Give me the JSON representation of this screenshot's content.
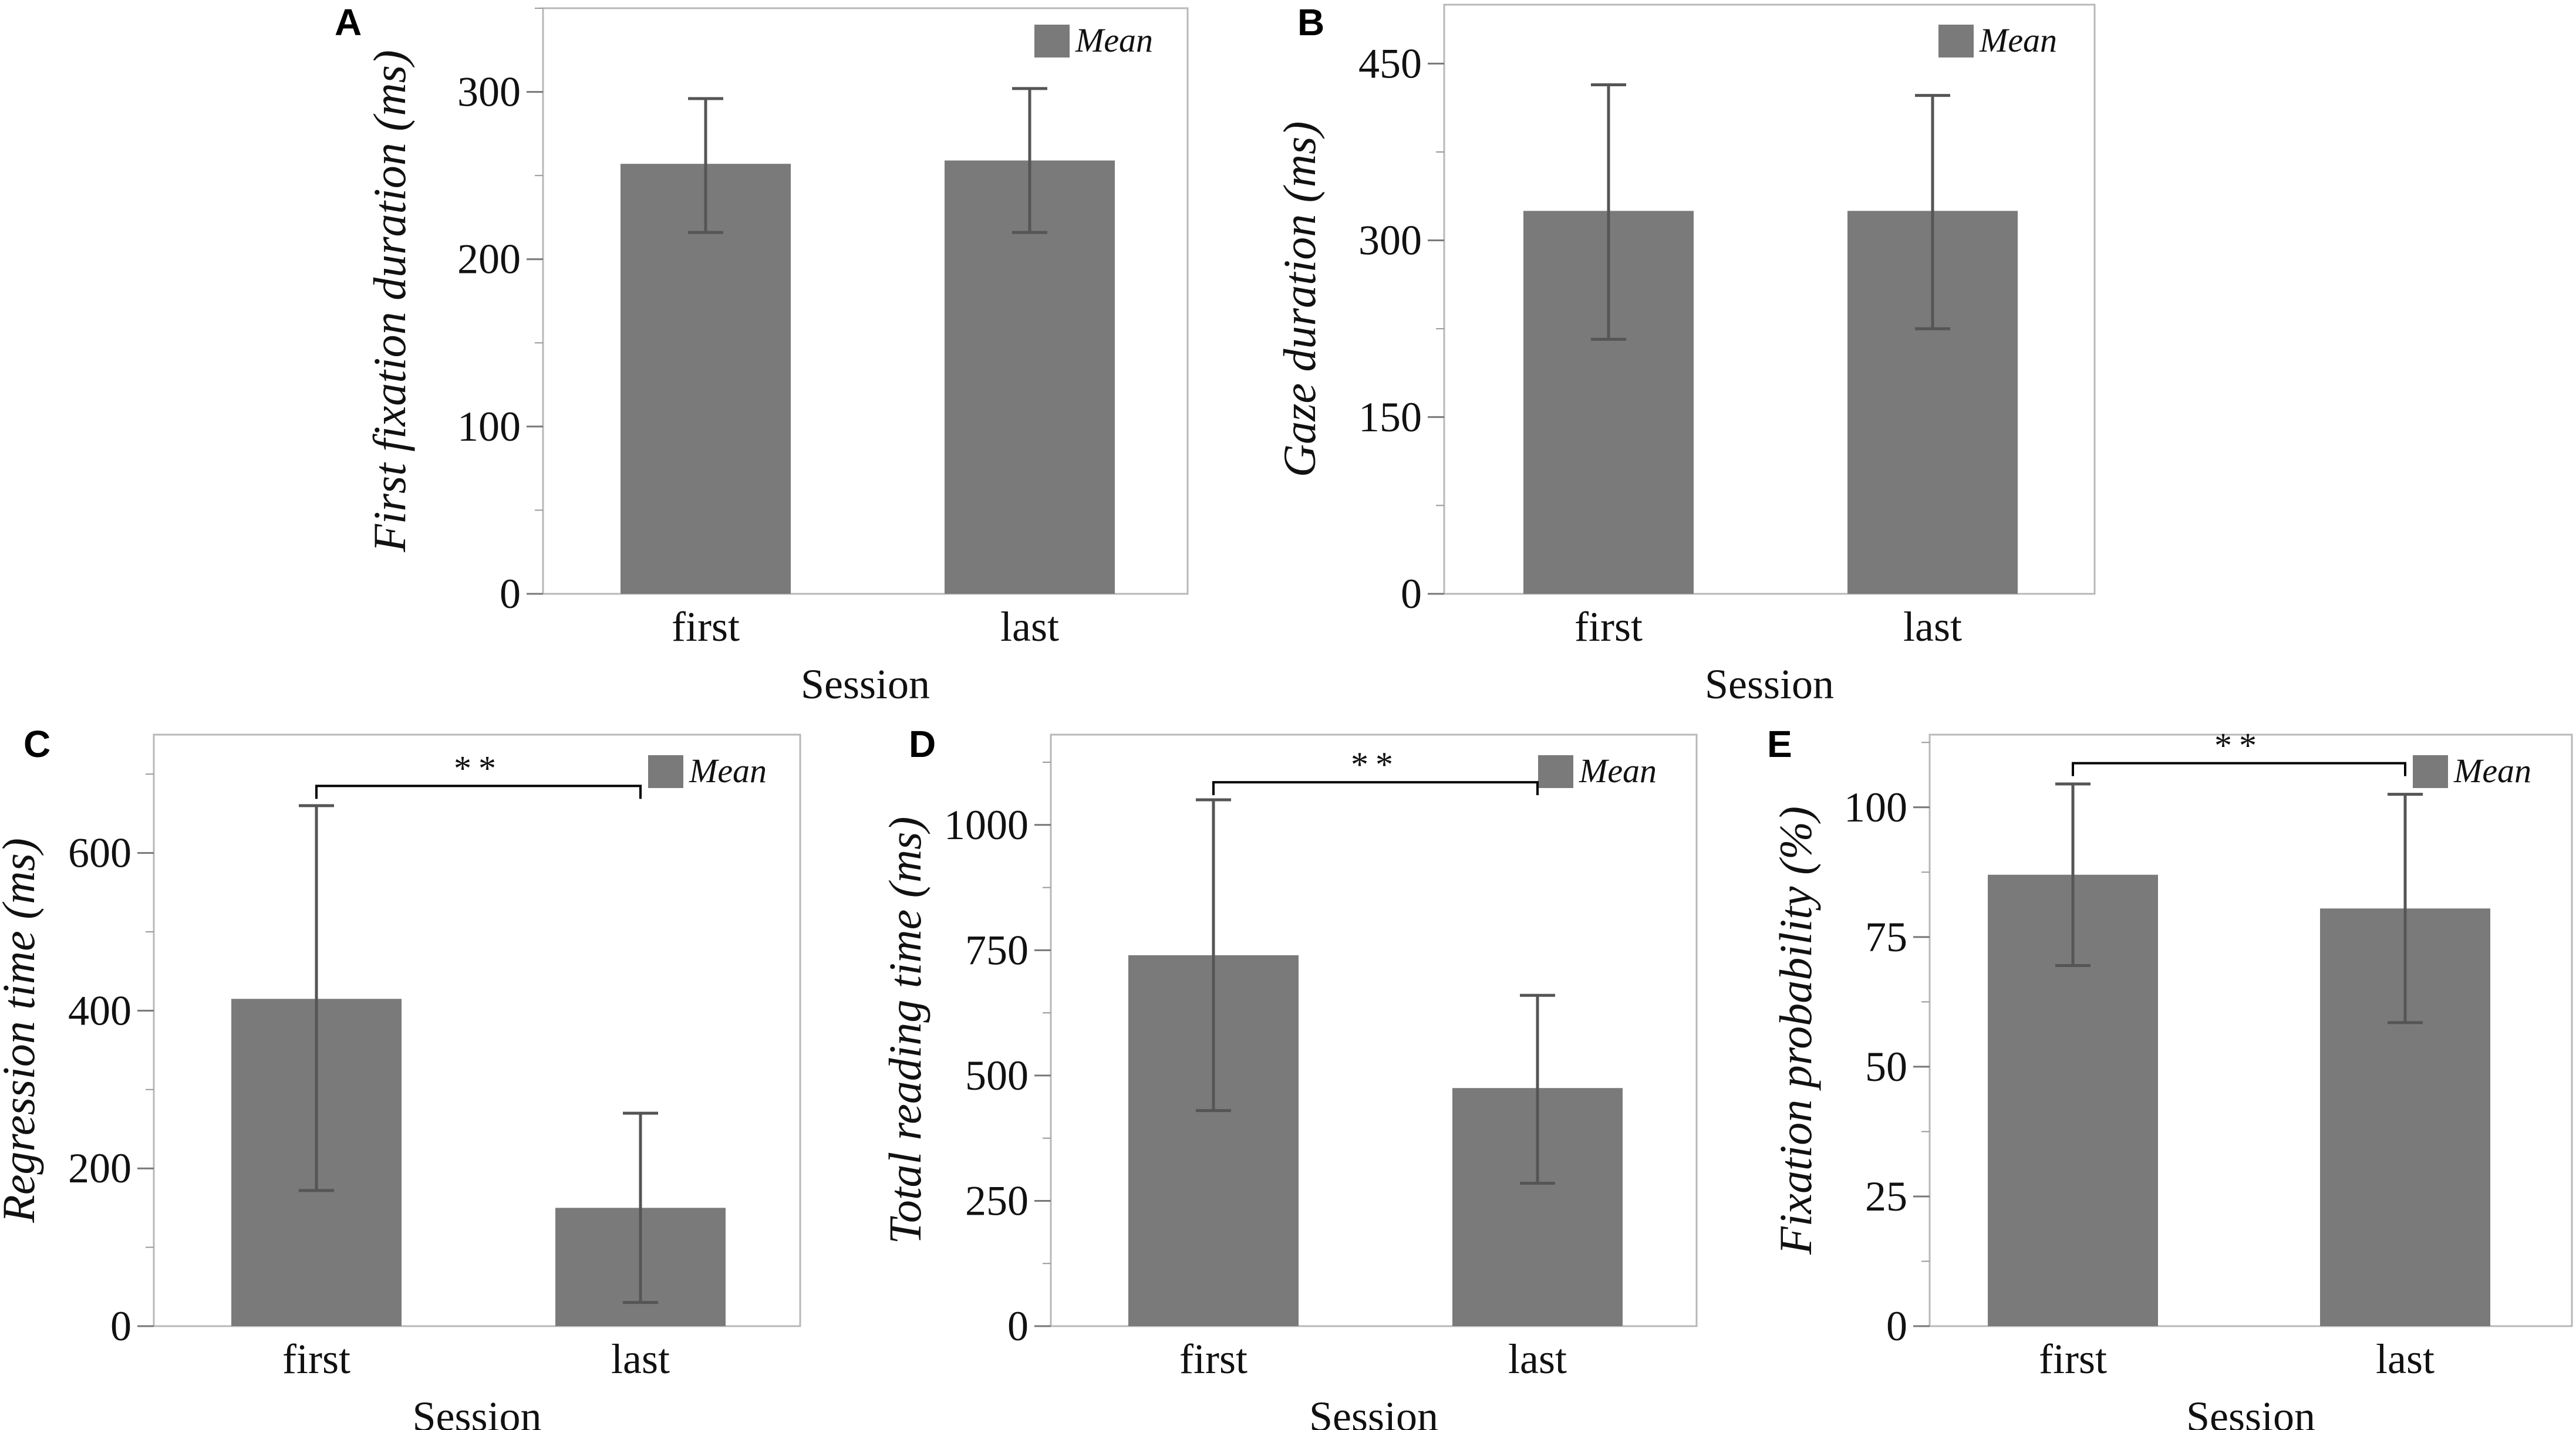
{
  "chart_data": [
    {
      "panel": "A",
      "type": "bar",
      "categories": [
        "first",
        "last"
      ],
      "values": [
        257,
        259
      ],
      "error_high": [
        296,
        302
      ],
      "error_low": [
        216,
        216
      ],
      "xlabel": "Session",
      "ylabel": "First fixation duration (ms)",
      "ylim": [
        0,
        350
      ],
      "yticks": [
        0,
        100,
        200,
        300
      ],
      "legend": "Mean",
      "legend_position": "top-right",
      "significance": null
    },
    {
      "panel": "B",
      "type": "bar",
      "categories": [
        "first",
        "last"
      ],
      "values": [
        325,
        325
      ],
      "error_high": [
        432,
        423
      ],
      "error_low": [
        216,
        225
      ],
      "xlabel": "Session",
      "ylabel": "Gaze duration (ms)",
      "ylim": [
        0,
        500
      ],
      "yticks": [
        0,
        150,
        300,
        450
      ],
      "legend": "Mean",
      "legend_position": "top-right",
      "significance": null
    },
    {
      "panel": "C",
      "type": "bar",
      "categories": [
        "first",
        "last"
      ],
      "values": [
        415,
        150
      ],
      "error_high": [
        660,
        270
      ],
      "error_low": [
        172,
        30
      ],
      "xlabel": "Session",
      "ylabel": "Regression time (ms)",
      "ylim": [
        0,
        750
      ],
      "yticks": [
        0,
        200,
        400,
        600
      ],
      "legend": "Mean",
      "legend_position": "top-right",
      "significance": {
        "label": "**",
        "level": 685
      }
    },
    {
      "panel": "D",
      "type": "bar",
      "categories": [
        "first",
        "last"
      ],
      "values": [
        740,
        475
      ],
      "error_high": [
        1050,
        660
      ],
      "error_low": [
        430,
        285
      ],
      "xlabel": "Session",
      "ylabel": "Total reading time (ms)",
      "ylim": [
        0,
        1180
      ],
      "yticks": [
        0,
        250,
        500,
        750,
        1000
      ],
      "legend": "Mean",
      "legend_position": "top-right",
      "significance": {
        "label": "**",
        "level": 1085
      }
    },
    {
      "panel": "E",
      "type": "bar",
      "categories": [
        "first",
        "last"
      ],
      "values": [
        87,
        80.5
      ],
      "error_high": [
        104.5,
        102.5
      ],
      "error_low": [
        69.5,
        58.5
      ],
      "xlabel": "Session",
      "ylabel": "Fixation probability (%)",
      "ylim": [
        0,
        114
      ],
      "yticks": [
        0,
        25,
        50,
        75,
        100
      ],
      "legend": "Mean",
      "legend_position": "top-right",
      "significance": {
        "label": "**",
        "level": 108.5
      }
    }
  ],
  "colors": {
    "bar": "#7a7a7a",
    "frame": "#b8b8b8",
    "error_bar": "#555555",
    "legend_swatch": "#7a7a7a"
  }
}
